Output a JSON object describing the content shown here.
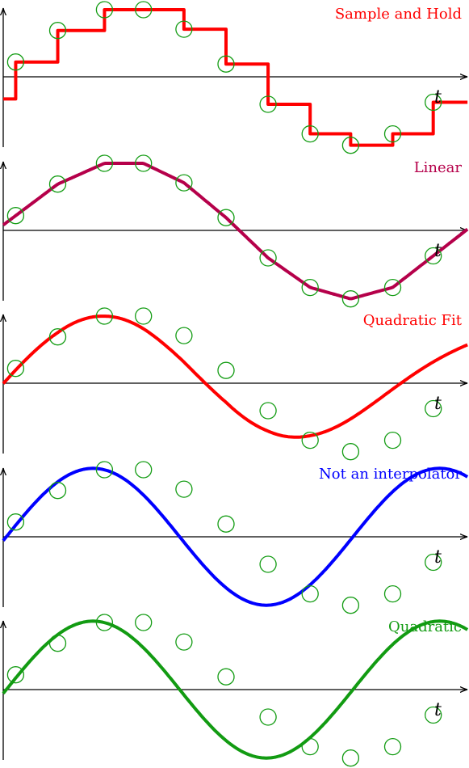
{
  "figure": {
    "axis_variable": "t",
    "sample_marker_color": "#139c13",
    "samples_t": [
      0.8,
      3.5,
      6.5,
      9.0,
      11.6,
      14.3,
      17.0,
      19.7,
      22.3,
      25.0,
      27.6
    ],
    "samples_y": [
      0.22,
      0.69,
      1.0,
      1.0,
      0.71,
      0.19,
      -0.41,
      -0.85,
      -1.02,
      -0.85,
      -0.38
    ],
    "t_range": [
      0,
      29.8
    ],
    "y_range": [
      -1.2,
      1.2
    ]
  },
  "panels": [
    {
      "id": "sample-and-hold",
      "title": "Sample and Hold",
      "method": "hold",
      "color": "#ff0000"
    },
    {
      "id": "linear",
      "title": "Linear",
      "method": "linear",
      "color": "#b5004a"
    },
    {
      "id": "quadratic-fit",
      "title": "Quadratic Fit",
      "method": "quadratic-fit",
      "color": "#ff0000"
    },
    {
      "id": "not-an-interpolator",
      "title": "Not an interpolator",
      "method": "smooth",
      "color": "#0000ff"
    },
    {
      "id": "quadratic",
      "title": "Quadratic",
      "method": "quadratic",
      "color": "#129b12"
    }
  ]
}
